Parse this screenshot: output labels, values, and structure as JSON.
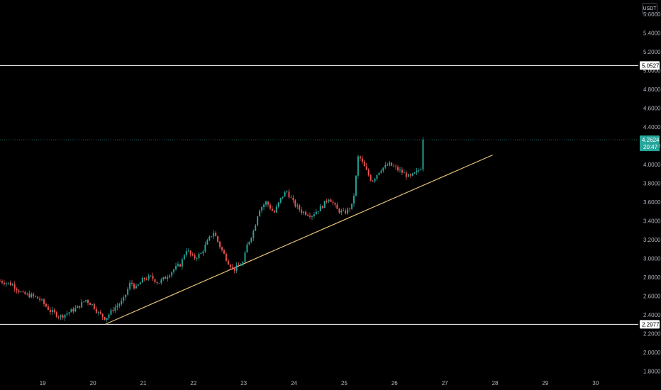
{
  "currency": "USDT",
  "colors": {
    "background": "#000000",
    "up": "#26a69a",
    "down": "#ef5350",
    "trendline": "#e8c27a",
    "hline": "#ffffff",
    "text": "#b2b5be"
  },
  "chart_data": {
    "type": "candlestick",
    "title": "",
    "ylim": [
      1.75,
      5.75
    ],
    "xlim": [
      18.15,
      30.85
    ],
    "y_ticks": [
      "1.8000",
      "2.0000",
      "2.2000",
      "2.4000",
      "2.6000",
      "2.8000",
      "3.0000",
      "3.2000",
      "3.4000",
      "3.6000",
      "3.8000",
      "4.0000",
      "4.2000",
      "4.4000",
      "4.6000",
      "4.8000",
      "5.0000",
      "5.2000",
      "5.4000",
      "5.6000"
    ],
    "x_ticks": [
      "19",
      "20",
      "21",
      "22",
      "23",
      "24",
      "25",
      "26",
      "27",
      "28",
      "29",
      "30"
    ],
    "last_price": "4.2624",
    "countdown": "20:47",
    "horizontal_levels": [
      {
        "value": 5.0527,
        "label": "5.0527"
      },
      {
        "value": 2.2977,
        "label": "2.2977"
      }
    ],
    "trendline": {
      "start": {
        "x": 20.25,
        "y": 2.3
      },
      "end": {
        "x": 27.95,
        "y": 4.1
      }
    },
    "price_path": [
      [
        18.15,
        2.76
      ],
      [
        18.4,
        2.72
      ],
      [
        18.6,
        2.62
      ],
      [
        18.8,
        2.6
      ],
      [
        18.95,
        2.56
      ],
      [
        19.15,
        2.44
      ],
      [
        19.35,
        2.38
      ],
      [
        19.5,
        2.42
      ],
      [
        19.7,
        2.48
      ],
      [
        19.85,
        2.56
      ],
      [
        20.0,
        2.5
      ],
      [
        20.1,
        2.42
      ],
      [
        20.25,
        2.36
      ],
      [
        20.4,
        2.46
      ],
      [
        20.6,
        2.55
      ],
      [
        20.75,
        2.75
      ],
      [
        20.85,
        2.68
      ],
      [
        21.0,
        2.78
      ],
      [
        21.15,
        2.8
      ],
      [
        21.3,
        2.74
      ],
      [
        21.45,
        2.8
      ],
      [
        21.6,
        2.88
      ],
      [
        21.75,
        2.94
      ],
      [
        21.85,
        3.1
      ],
      [
        22.0,
        3.0
      ],
      [
        22.15,
        3.05
      ],
      [
        22.3,
        3.2
      ],
      [
        22.4,
        3.28
      ],
      [
        22.55,
        3.1
      ],
      [
        22.7,
        2.95
      ],
      [
        22.8,
        2.88
      ],
      [
        23.0,
        2.96
      ],
      [
        23.05,
        3.12
      ],
      [
        23.2,
        3.3
      ],
      [
        23.3,
        3.52
      ],
      [
        23.45,
        3.6
      ],
      [
        23.6,
        3.48
      ],
      [
        23.75,
        3.65
      ],
      [
        23.85,
        3.72
      ],
      [
        24.0,
        3.58
      ],
      [
        24.15,
        3.5
      ],
      [
        24.35,
        3.46
      ],
      [
        24.55,
        3.55
      ],
      [
        24.7,
        3.65
      ],
      [
        24.85,
        3.52
      ],
      [
        25.0,
        3.48
      ],
      [
        25.15,
        3.56
      ],
      [
        25.2,
        3.7
      ],
      [
        25.28,
        4.1
      ],
      [
        25.42,
        3.95
      ],
      [
        25.55,
        3.82
      ],
      [
        25.72,
        3.95
      ],
      [
        25.9,
        4.0
      ],
      [
        26.05,
        3.95
      ],
      [
        26.2,
        3.9
      ],
      [
        26.3,
        3.86
      ],
      [
        26.45,
        3.92
      ],
      [
        26.55,
        3.98
      ],
      [
        26.6,
        4.26
      ]
    ]
  }
}
